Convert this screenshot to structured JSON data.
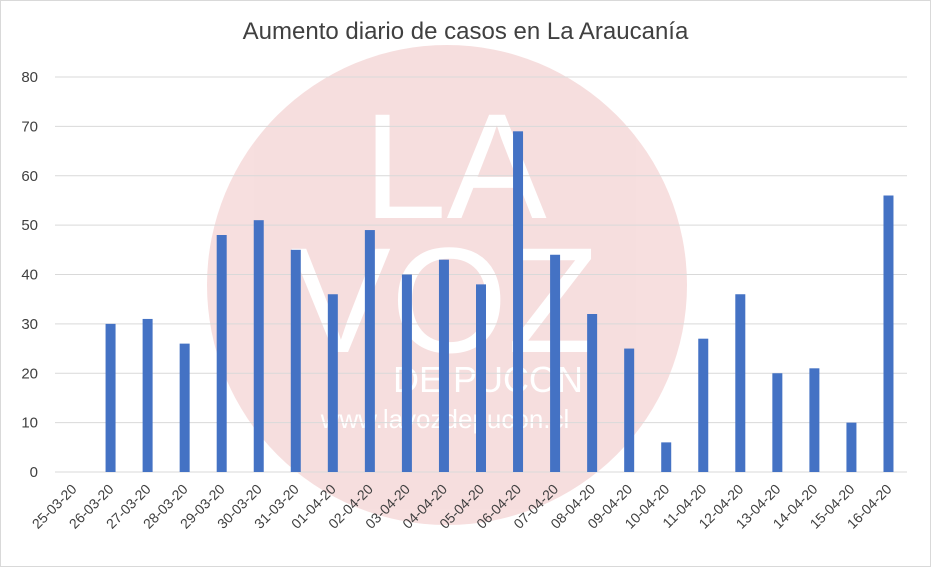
{
  "chart_data": {
    "type": "bar",
    "title": "Aumento diario de casos en La Araucanía",
    "xlabel": "",
    "ylabel": "",
    "ylim": [
      0,
      80
    ],
    "yticks": [
      0,
      10,
      20,
      30,
      40,
      50,
      60,
      70,
      80
    ],
    "grid": true,
    "categories": [
      "25-03-20",
      "26-03-20",
      "27-03-20",
      "28-03-20",
      "29-03-20",
      "30-03-20",
      "31-03-20",
      "01-04-20",
      "02-04-20",
      "03-04-20",
      "04-04-20",
      "05-04-20",
      "06-04-20",
      "07-04-20",
      "08-04-20",
      "09-04-20",
      "10-04-20",
      "11-04-20",
      "12-04-20",
      "13-04-20",
      "14-04-20",
      "15-04-20",
      "16-04-20"
    ],
    "values": [
      0,
      30,
      31,
      26,
      48,
      51,
      45,
      36,
      49,
      40,
      43,
      38,
      69,
      44,
      32,
      25,
      6,
      27,
      36,
      20,
      21,
      10,
      56
    ],
    "bar_color": "#4472c4"
  },
  "watermark": {
    "logo_text": [
      "LA",
      "VOZ"
    ],
    "sub_text": "DE PUCON",
    "url_text": "www.lavozdepucon.cl",
    "color": "#e8a0a0"
  }
}
